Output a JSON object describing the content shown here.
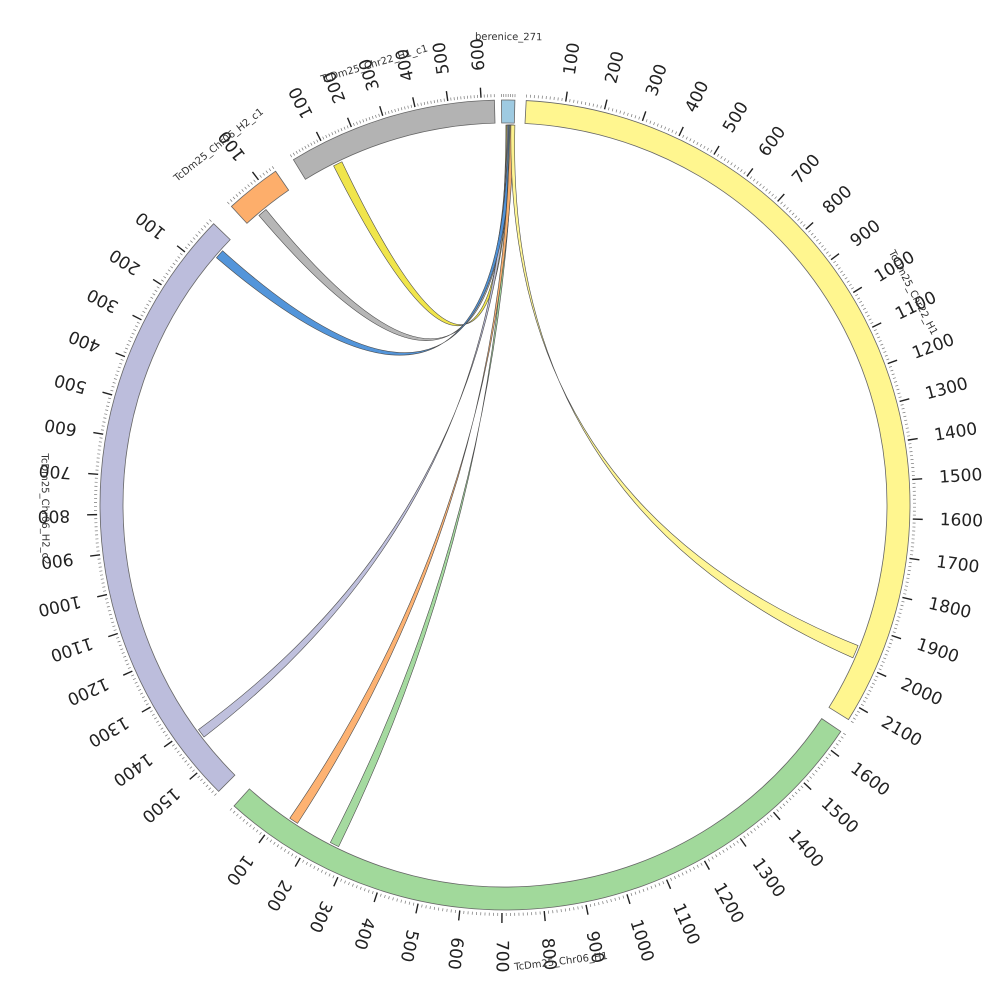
{
  "segments": [
    {
      "id": "berenice_271",
      "label": "berenice_271",
      "length": 60,
      "color": "#9ecae1",
      "ticks": []
    },
    {
      "id": "chr22_h1",
      "label": "TcDm25_Chr22_H1",
      "length": 2140,
      "color": "#fff68f",
      "ticks": [
        "100",
        "200",
        "300",
        "400",
        "500",
        "600",
        "700",
        "800",
        "900",
        "1000",
        "1100",
        "1200",
        "1300",
        "1400",
        "1500",
        "1600",
        "1700",
        "1800",
        "1900",
        "2000",
        "2100"
      ]
    },
    {
      "id": "chr06_h1",
      "label": "TcDm25_Chr06_H1",
      "length": 1650,
      "color": "#a1d99b",
      "ticks": [
        "100",
        "200",
        "300",
        "400",
        "500",
        "600",
        "700",
        "800",
        "900",
        "1000",
        "1100",
        "1200",
        "1300",
        "1400",
        "1500",
        "1600"
      ]
    },
    {
      "id": "chr06_h2_c2",
      "label": "TcDm25_Chr06_H2_c2",
      "length": 1570,
      "color": "#bcbddc",
      "ticks": [
        "100",
        "200",
        "300",
        "400",
        "500",
        "600",
        "700",
        "800",
        "900",
        "1000",
        "1100",
        "1200",
        "1300",
        "1400",
        "1500"
      ]
    },
    {
      "id": "chr06_h2_c1",
      "label": "TcDm25_Chr06_H2_c1",
      "length": 150,
      "color": "#fdae6b",
      "ticks": [
        "100"
      ]
    },
    {
      "id": "chr22_h1_c1",
      "label": "TcDm25_Chr22_H1_c1",
      "length": 640,
      "color": "#b3b3b3",
      "ticks": [
        "100",
        "200",
        "300",
        "400",
        "500",
        "600"
      ]
    }
  ],
  "links": [
    {
      "from": "berenice_271",
      "to": "chr22_h1_c1",
      "color": "#f0e442",
      "target_pos": 100
    },
    {
      "from": "berenice_271",
      "to": "chr06_h2_c1",
      "color": "#b3b3b3",
      "target_pos": 40
    },
    {
      "from": "berenice_271",
      "to": "chr06_h2_c2",
      "color": "#bcbddc",
      "target_pos": 1440
    },
    {
      "from": "berenice_271",
      "to": "chr06_h2_c2",
      "color": "#4a90d9",
      "target_pos": 60
    },
    {
      "from": "berenice_271",
      "to": "chr06_h1",
      "color": "#a1d99b",
      "target_pos": 270
    },
    {
      "from": "berenice_271",
      "to": "chr06_h1",
      "color": "#fdae6b",
      "target_pos": 150
    },
    {
      "from": "berenice_271",
      "to": "chr22_h1",
      "color": "#fff68f",
      "target_pos": 1955
    }
  ]
}
